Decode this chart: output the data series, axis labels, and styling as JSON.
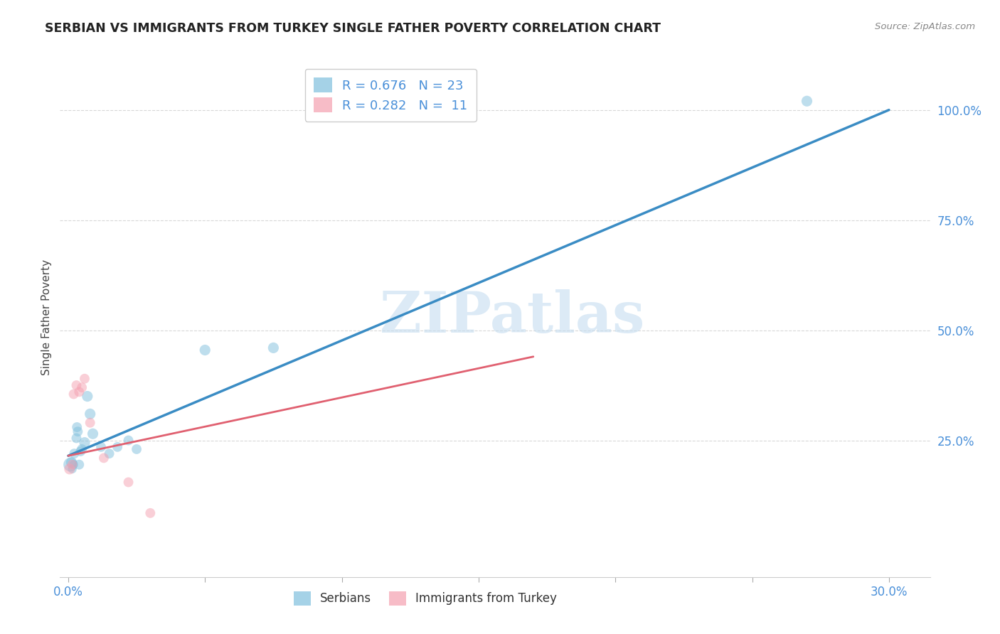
{
  "title": "SERBIAN VS IMMIGRANTS FROM TURKEY SINGLE FATHER POVERTY CORRELATION CHART",
  "source": "Source: ZipAtlas.com",
  "ylabel": "Single Father Poverty",
  "xlim": [
    -0.003,
    0.315
  ],
  "ylim": [
    -0.06,
    1.12
  ],
  "legend_label1": "R = 0.676   N = 23",
  "legend_label2": "R = 0.282   N =  11",
  "legend_color1": "#7fbfdd",
  "legend_color2": "#f5a0b0",
  "line1_color": "#3a8cc4",
  "line2_color": "#e06070",
  "watermark_text": "ZIPatlas",
  "grid_color": "#d8d8d8",
  "background_color": "#ffffff",
  "tick_color": "#4a90d9",
  "serbians_x": [
    0.0008,
    0.0012,
    0.0015,
    0.002,
    0.0022,
    0.003,
    0.0032,
    0.0035,
    0.004,
    0.0045,
    0.005,
    0.006,
    0.007,
    0.008,
    0.009,
    0.012,
    0.015,
    0.018,
    0.022,
    0.025,
    0.05,
    0.075,
    0.27
  ],
  "serbians_y": [
    0.195,
    0.2,
    0.185,
    0.195,
    0.22,
    0.255,
    0.28,
    0.27,
    0.195,
    0.225,
    0.23,
    0.245,
    0.35,
    0.31,
    0.265,
    0.235,
    0.22,
    0.235,
    0.25,
    0.23,
    0.455,
    0.46,
    1.02
  ],
  "serbians_size": [
    200,
    120,
    80,
    80,
    100,
    100,
    100,
    100,
    100,
    100,
    100,
    120,
    120,
    120,
    120,
    100,
    100,
    100,
    100,
    100,
    120,
    120,
    120
  ],
  "turkey_x": [
    0.0005,
    0.0015,
    0.002,
    0.003,
    0.004,
    0.005,
    0.006,
    0.008,
    0.013,
    0.022,
    0.03
  ],
  "turkey_y": [
    0.185,
    0.195,
    0.355,
    0.375,
    0.36,
    0.37,
    0.39,
    0.29,
    0.21,
    0.155,
    0.085
  ],
  "turkey_size": [
    120,
    100,
    100,
    100,
    100,
    100,
    100,
    100,
    100,
    100,
    100
  ],
  "line1_x0": 0.0,
  "line1_y0": 0.215,
  "line1_x1": 0.3,
  "line1_y1": 1.0,
  "line2_x0": 0.0,
  "line2_y0": 0.215,
  "line2_x1": 0.17,
  "line2_y1": 0.44,
  "refline_x0": 0.0,
  "refline_y0": 0.215,
  "refline_x1": 0.3,
  "refline_y1": 1.0
}
